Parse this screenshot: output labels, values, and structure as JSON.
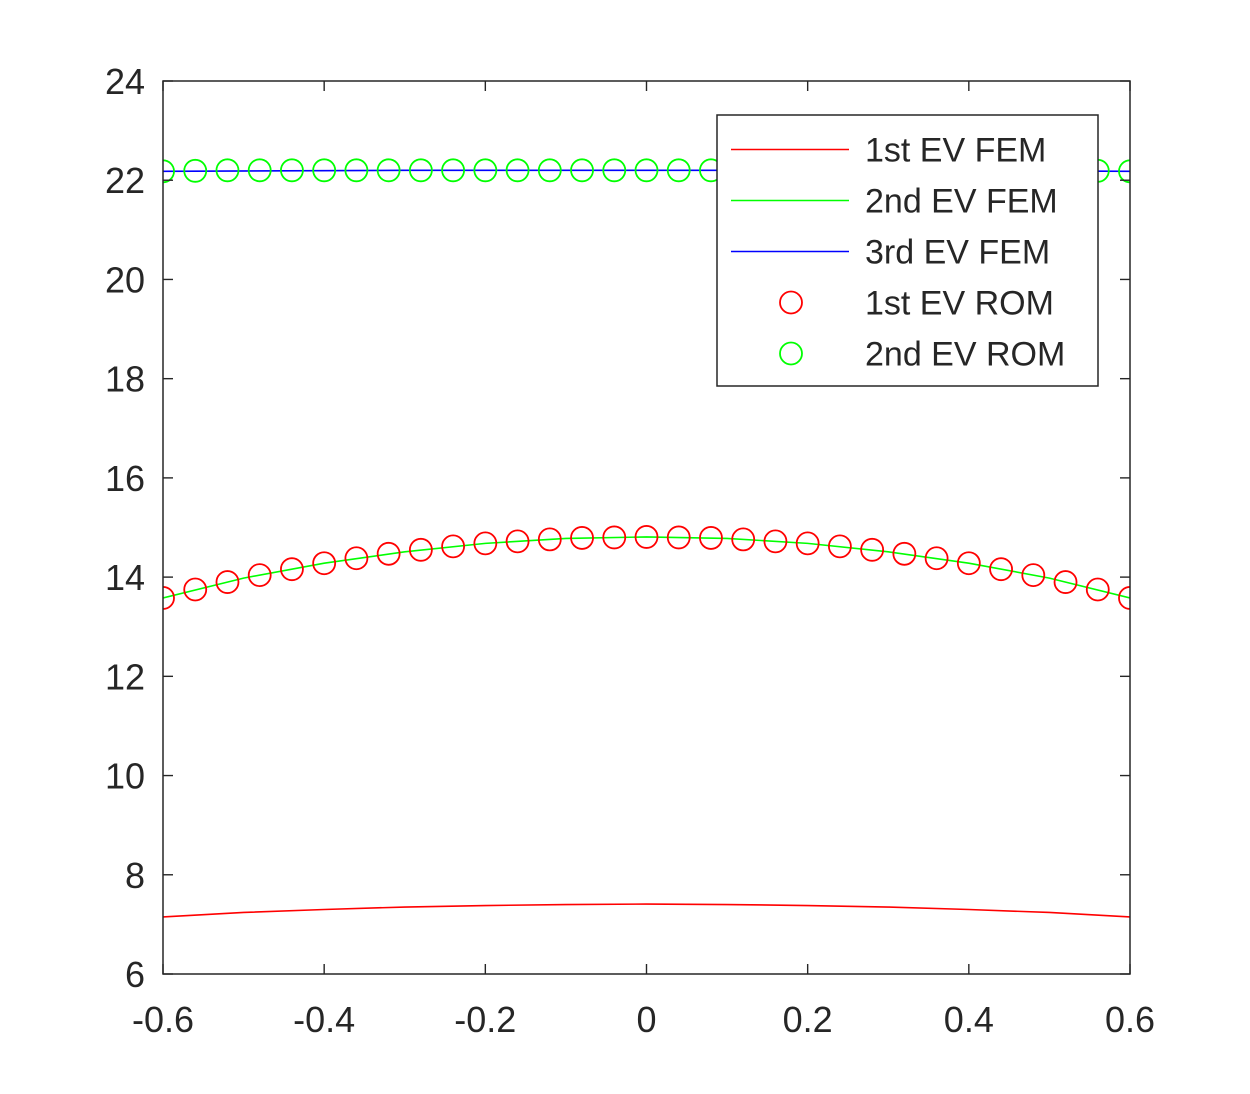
{
  "chart_data": {
    "type": "line",
    "title": "",
    "xlabel": "",
    "ylabel": "",
    "xlim": [
      -0.6,
      0.6
    ],
    "ylim": [
      6,
      24
    ],
    "xticks": [
      "-0.6",
      "-0.4",
      "-0.2",
      "0",
      "0.2",
      "0.4",
      "0.6"
    ],
    "yticks": [
      "6",
      "8",
      "10",
      "12",
      "14",
      "16",
      "18",
      "20",
      "22",
      "24"
    ],
    "grid": false,
    "legend_position": "top-right",
    "series": [
      {
        "name": "1st EV FEM",
        "style": "line",
        "color": "#ff0000",
        "x": [
          -0.6,
          -0.5,
          -0.4,
          -0.3,
          -0.2,
          -0.1,
          0,
          0.1,
          0.2,
          0.3,
          0.4,
          0.5,
          0.6
        ],
        "y": [
          7.15,
          7.24,
          7.3,
          7.35,
          7.38,
          7.4,
          7.41,
          7.4,
          7.38,
          7.35,
          7.3,
          7.24,
          7.15
        ]
      },
      {
        "name": "2nd EV FEM",
        "style": "line",
        "color": "#00ff00",
        "x": [
          -0.6,
          -0.5,
          -0.4,
          -0.3,
          -0.2,
          -0.1,
          0,
          0.1,
          0.2,
          0.3,
          0.4,
          0.5,
          0.6
        ],
        "y": [
          13.58,
          13.98,
          14.28,
          14.51,
          14.68,
          14.78,
          14.81,
          14.78,
          14.68,
          14.51,
          14.28,
          13.98,
          13.58
        ]
      },
      {
        "name": "3rd EV FEM",
        "style": "line",
        "color": "#0000ff",
        "x": [
          -0.6,
          -0.3,
          0,
          0.3,
          0.6
        ],
        "y": [
          22.18,
          22.2,
          22.2,
          22.2,
          22.18
        ]
      },
      {
        "name": "1st EV ROM",
        "style": "markers",
        "marker": "circle",
        "color": "#ff0000",
        "x": [
          -0.6,
          -0.56,
          -0.52,
          -0.48,
          -0.44,
          -0.4,
          -0.36,
          -0.32,
          -0.28,
          -0.24,
          -0.2,
          -0.16,
          -0.12,
          -0.08,
          -0.04,
          0,
          0.04,
          0.08,
          0.12,
          0.16,
          0.2,
          0.24,
          0.28,
          0.32,
          0.36,
          0.4,
          0.44,
          0.48,
          0.52,
          0.56,
          0.6
        ],
        "y": [
          13.58,
          13.75,
          13.9,
          14.04,
          14.16,
          14.28,
          14.38,
          14.47,
          14.55,
          14.62,
          14.68,
          14.72,
          14.76,
          14.79,
          14.8,
          14.81,
          14.8,
          14.79,
          14.76,
          14.72,
          14.68,
          14.62,
          14.55,
          14.47,
          14.38,
          14.28,
          14.16,
          14.04,
          13.9,
          13.75,
          13.58
        ]
      },
      {
        "name": "2nd EV ROM",
        "style": "markers",
        "marker": "circle",
        "color": "#00ff00",
        "x": [
          -0.6,
          -0.56,
          -0.52,
          -0.48,
          -0.44,
          -0.4,
          -0.36,
          -0.32,
          -0.28,
          -0.24,
          -0.2,
          -0.16,
          -0.12,
          -0.08,
          -0.04,
          0,
          0.04,
          0.08,
          0.56,
          0.6
        ],
        "y": [
          22.18,
          22.19,
          22.2,
          22.2,
          22.2,
          22.2,
          22.2,
          22.2,
          22.2,
          22.2,
          22.2,
          22.2,
          22.2,
          22.2,
          22.2,
          22.2,
          22.2,
          22.2,
          22.19,
          22.18
        ]
      }
    ]
  }
}
